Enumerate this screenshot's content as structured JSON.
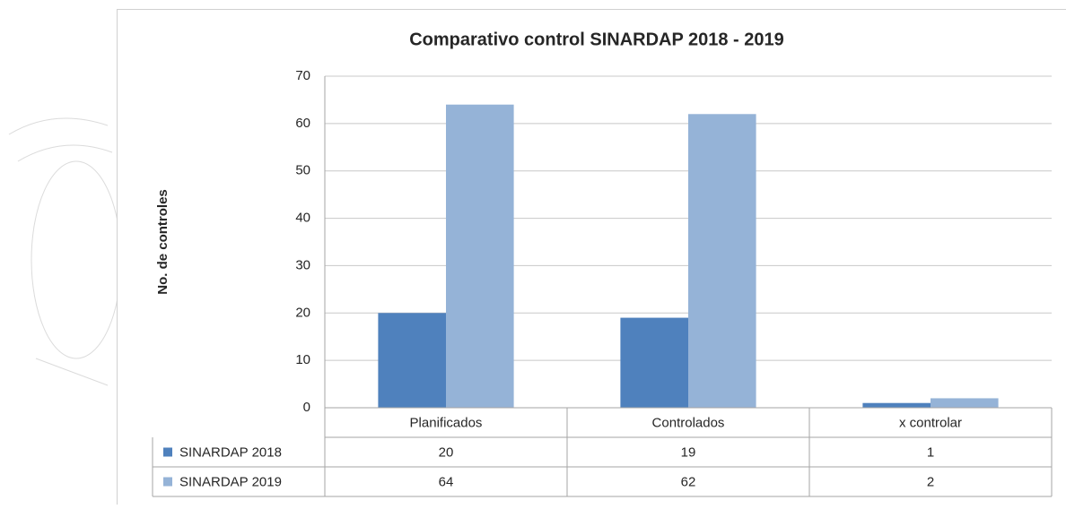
{
  "chart_data": {
    "type": "bar",
    "title": "Comparativo control SINARDAP 2018 - 2019",
    "y_label": "No. de controles",
    "categories": [
      "Planificados",
      "Controlados",
      "x controlar"
    ],
    "series": [
      {
        "name": "SINARDAP 2018",
        "color": "#4f81bd",
        "values": [
          20,
          19,
          1
        ]
      },
      {
        "name": "SINARDAP 2019",
        "color": "#95b3d7",
        "values": [
          64,
          62,
          2
        ]
      }
    ],
    "ylim": [
      0,
      70
    ],
    "yticks": [
      0,
      10,
      20,
      30,
      40,
      50,
      60,
      70
    ],
    "grid": true,
    "data_table": true
  }
}
